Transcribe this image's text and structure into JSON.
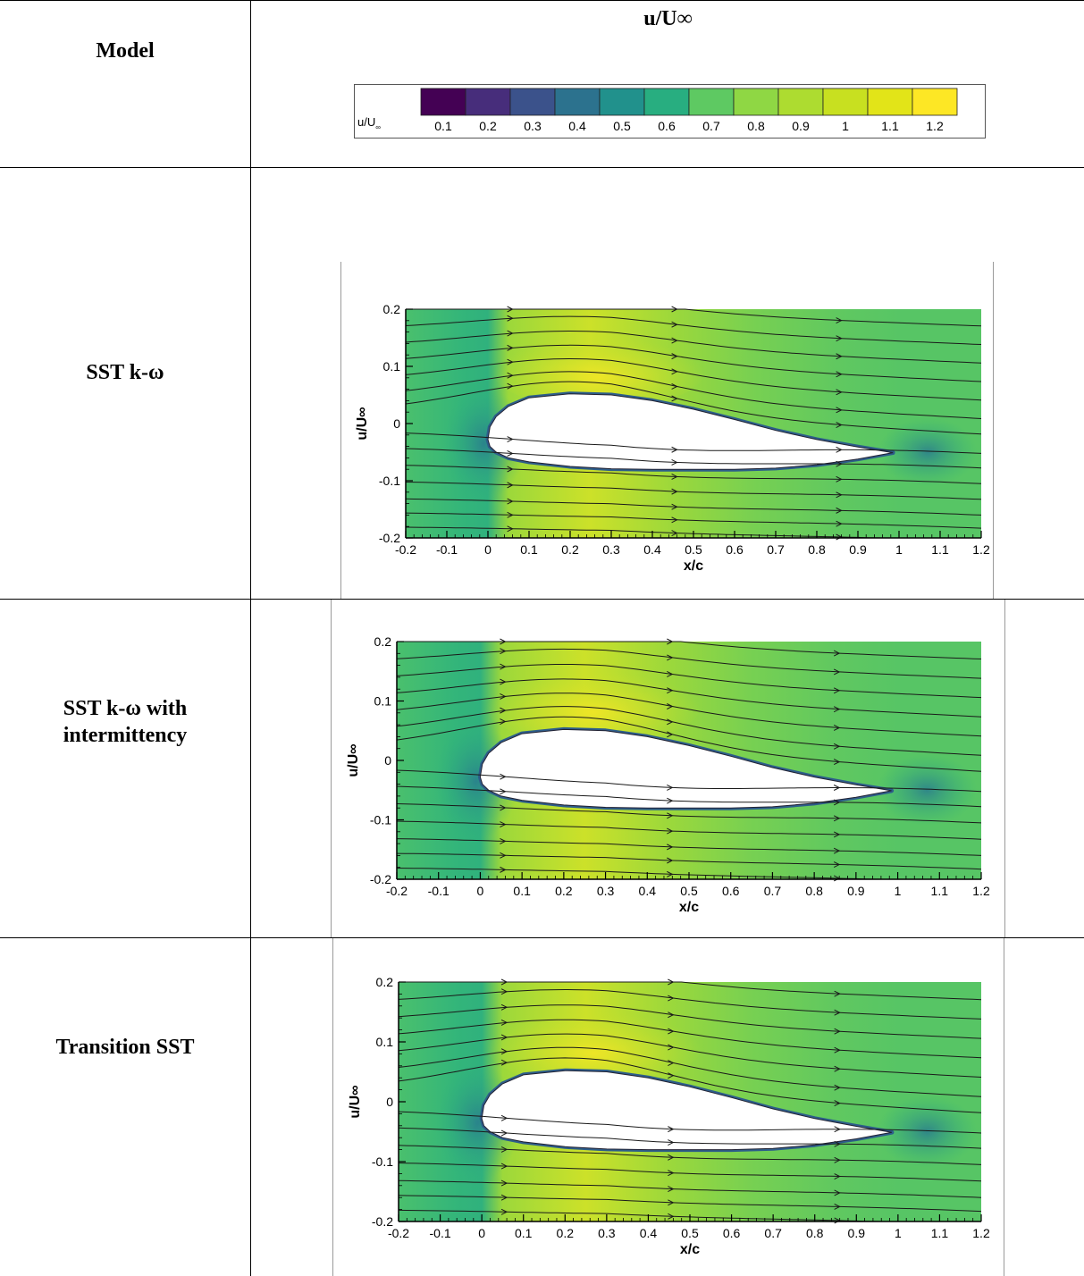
{
  "table": {
    "header_model": "Model",
    "header_field": "u/U∞",
    "rows": [
      {
        "label_lines": [
          "SST k-ω"
        ]
      },
      {
        "label_lines": [
          "SST k-ω with",
          "intermittency"
        ]
      },
      {
        "label_lines": [
          "Transition SST"
        ]
      }
    ]
  },
  "colorbar": {
    "label": "u/U",
    "label_sub": "∞",
    "ticks": [
      "0.1",
      "0.2",
      "0.3",
      "0.4",
      "0.5",
      "0.6",
      "0.7",
      "0.8",
      "0.9",
      "1",
      "1.1",
      "1.2"
    ],
    "colors": [
      "#440154",
      "#472d7b",
      "#3b528b",
      "#2c728e",
      "#21918c",
      "#28ae80",
      "#5ec962",
      "#8fd744",
      "#addc30",
      "#c8e020",
      "#e2e418",
      "#fde725"
    ]
  },
  "chart_data": [
    {
      "type": "contour",
      "title": "SST k-ω",
      "xlabel": "x/c",
      "ylabel": "u/U∞",
      "xlim": [
        -0.2,
        1.2
      ],
      "ylim": [
        -0.2,
        0.2
      ],
      "xticks": [
        "-0.2",
        "-0.1",
        "0",
        "0.1",
        "0.2",
        "0.3",
        "0.4",
        "0.5",
        "0.6",
        "0.7",
        "0.8",
        "0.9",
        "1",
        "1.1",
        "1.2"
      ],
      "yticks": [
        "0.2",
        "0.1",
        "0",
        "-0.1",
        "-0.2"
      ],
      "field": "u/U∞",
      "value_range": [
        0.05,
        1.25
      ]
    },
    {
      "type": "contour",
      "title": "SST k-ω with intermittency",
      "xlabel": "x/c",
      "ylabel": "u/U∞",
      "xlim": [
        -0.2,
        1.2
      ],
      "ylim": [
        -0.2,
        0.2
      ],
      "xticks": [
        "-0.2",
        "-0.1",
        "0",
        "0.1",
        "0.2",
        "0.3",
        "0.4",
        "0.5",
        "0.6",
        "0.7",
        "0.8",
        "0.9",
        "1",
        "1.1",
        "1.2"
      ],
      "yticks": [
        "0.2",
        "0.1",
        "0",
        "-0.1",
        "-0.2"
      ],
      "field": "u/U∞",
      "value_range": [
        0.05,
        1.25
      ]
    },
    {
      "type": "contour",
      "title": "Transition SST",
      "xlabel": "x/c",
      "ylabel": "u/U∞",
      "xlim": [
        -0.2,
        1.2
      ],
      "ylim": [
        -0.2,
        0.2
      ],
      "xticks": [
        "-0.2",
        "-0.1",
        "0",
        "0.1",
        "0.2",
        "0.3",
        "0.4",
        "0.5",
        "0.6",
        "0.7",
        "0.8",
        "0.9",
        "1",
        "1.1",
        "1.2"
      ],
      "yticks": [
        "0.2",
        "0.1",
        "0",
        "-0.1",
        "-0.2"
      ],
      "field": "u/U∞",
      "value_range": [
        0.05,
        1.25
      ]
    }
  ]
}
